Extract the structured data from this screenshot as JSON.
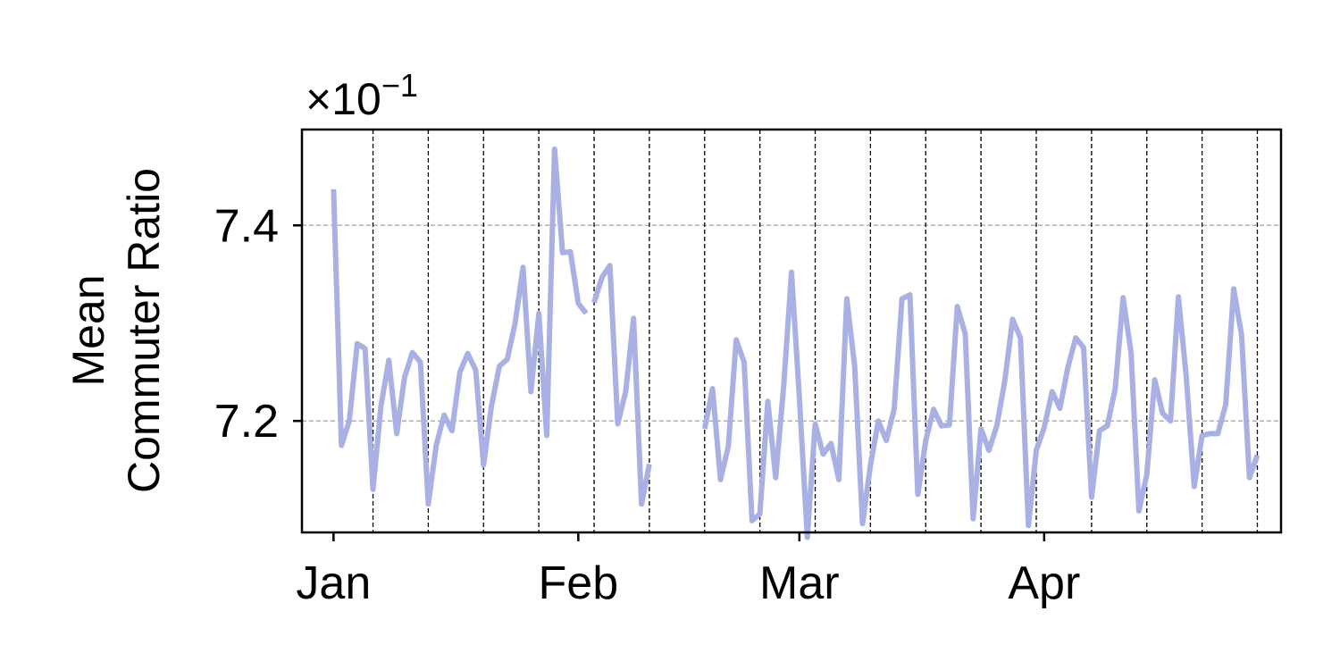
{
  "chart_data": {
    "type": "line",
    "title": "",
    "xlabel": "",
    "ylabel_line1": "Mean",
    "ylabel_line2": "Commuter Ratio",
    "y_multiplier": "×10",
    "y_multiplier_exponent": "−1",
    "ylim": [
      7.086,
      7.498
    ],
    "xlim": [
      "2021-12-28",
      "2022-05-01"
    ],
    "yticks": [
      {
        "value": 7.2,
        "label": "7.2"
      },
      {
        "value": 7.4,
        "label": "7.4"
      }
    ],
    "xticks": [
      {
        "date": "2022-01-01",
        "label": "Jan"
      },
      {
        "date": "2022-02-01",
        "label": "Feb"
      },
      {
        "date": "2022-03-01",
        "label": "Mar"
      },
      {
        "date": "2022-04-01",
        "label": "Apr"
      }
    ],
    "y_grid": true,
    "week_lines": [
      "2022-01-06",
      "2022-01-13",
      "2022-01-20",
      "2022-01-27",
      "2022-02-03",
      "2022-02-10",
      "2022-02-17",
      "2022-02-24",
      "2022-03-03",
      "2022-03-10",
      "2022-03-17",
      "2022-03-24",
      "2022-03-31",
      "2022-04-07",
      "2022-04-14",
      "2022-04-21",
      "2022-04-28"
    ],
    "line_color": "#a8b0e4",
    "series": [
      {
        "segments": [
          [
            [
              "2022-01-01",
              7.437
            ],
            [
              "2022-01-02",
              7.175
            ],
            [
              "2022-01-03",
              7.2
            ],
            [
              "2022-01-04",
              7.279
            ],
            [
              "2022-01-05",
              7.274
            ],
            [
              "2022-01-06",
              7.13
            ],
            [
              "2022-01-07",
              7.215
            ],
            [
              "2022-01-08",
              7.262
            ],
            [
              "2022-01-09",
              7.187
            ],
            [
              "2022-01-10",
              7.245
            ],
            [
              "2022-01-11",
              7.27
            ],
            [
              "2022-01-12",
              7.26
            ],
            [
              "2022-01-13",
              7.115
            ],
            [
              "2022-01-14",
              7.175
            ],
            [
              "2022-01-15",
              7.206
            ],
            [
              "2022-01-16",
              7.19
            ],
            [
              "2022-01-17",
              7.25
            ],
            [
              "2022-01-18",
              7.269
            ],
            [
              "2022-01-19",
              7.252
            ],
            [
              "2022-01-20",
              7.155
            ],
            [
              "2022-01-21",
              7.215
            ],
            [
              "2022-01-22",
              7.256
            ],
            [
              "2022-01-23",
              7.263
            ],
            [
              "2022-01-24",
              7.3
            ],
            [
              "2022-01-25",
              7.357
            ],
            [
              "2022-01-26",
              7.23
            ],
            [
              "2022-01-27",
              7.31
            ],
            [
              "2022-01-28",
              7.185
            ],
            [
              "2022-01-29",
              7.478
            ],
            [
              "2022-01-30",
              7.372
            ],
            [
              "2022-01-31",
              7.373
            ],
            [
              "2022-02-01",
              7.32
            ],
            [
              "2022-02-02",
              7.31
            ]
          ],
          [
            [
              "2022-02-03",
              7.321
            ],
            [
              "2022-02-04",
              7.347
            ],
            [
              "2022-02-05",
              7.359
            ],
            [
              "2022-02-06",
              7.197
            ],
            [
              "2022-02-07",
              7.23
            ],
            [
              "2022-02-08",
              7.305
            ],
            [
              "2022-02-09",
              7.115
            ],
            [
              "2022-02-10",
              7.156
            ]
          ],
          [
            [
              "2022-02-17",
              7.192
            ],
            [
              "2022-02-18",
              7.233
            ],
            [
              "2022-02-19",
              7.14
            ],
            [
              "2022-02-20",
              7.174
            ],
            [
              "2022-02-21",
              7.283
            ],
            [
              "2022-02-22",
              7.26
            ],
            [
              "2022-02-23",
              7.098
            ],
            [
              "2022-02-24",
              7.105
            ],
            [
              "2022-02-25",
              7.22
            ],
            [
              "2022-02-26",
              7.142
            ],
            [
              "2022-02-27",
              7.235
            ],
            [
              "2022-02-28",
              7.352
            ],
            [
              "2022-03-01",
              7.224
            ],
            [
              "2022-03-02",
              7.081
            ],
            [
              "2022-03-03",
              7.197
            ],
            [
              "2022-03-04",
              7.166
            ],
            [
              "2022-03-05",
              7.177
            ],
            [
              "2022-03-06",
              7.14
            ],
            [
              "2022-03-07",
              7.325
            ],
            [
              "2022-03-08",
              7.256
            ],
            [
              "2022-03-09",
              7.095
            ],
            [
              "2022-03-10",
              7.155
            ],
            [
              "2022-03-11",
              7.2
            ],
            [
              "2022-03-12",
              7.18
            ],
            [
              "2022-03-13",
              7.212
            ],
            [
              "2022-03-14",
              7.325
            ],
            [
              "2022-03-15",
              7.329
            ],
            [
              "2022-03-16",
              7.125
            ],
            [
              "2022-03-17",
              7.18
            ],
            [
              "2022-03-18",
              7.212
            ],
            [
              "2022-03-19",
              7.195
            ],
            [
              "2022-03-20",
              7.196
            ],
            [
              "2022-03-21",
              7.317
            ],
            [
              "2022-03-22",
              7.289
            ],
            [
              "2022-03-23",
              7.1
            ],
            [
              "2022-03-24",
              7.192
            ],
            [
              "2022-03-25",
              7.17
            ],
            [
              "2022-03-26",
              7.195
            ],
            [
              "2022-03-27",
              7.24
            ],
            [
              "2022-03-28",
              7.304
            ],
            [
              "2022-03-29",
              7.285
            ],
            [
              "2022-03-30",
              7.093
            ],
            [
              "2022-03-31",
              7.17
            ],
            [
              "2022-04-01",
              7.193
            ],
            [
              "2022-04-02",
              7.23
            ],
            [
              "2022-04-03",
              7.213
            ],
            [
              "2022-04-04",
              7.255
            ],
            [
              "2022-04-05",
              7.285
            ],
            [
              "2022-04-06",
              7.275
            ],
            [
              "2022-04-07",
              7.122
            ],
            [
              "2022-04-08",
              7.19
            ],
            [
              "2022-04-09",
              7.195
            ],
            [
              "2022-04-10",
              7.233
            ],
            [
              "2022-04-11",
              7.326
            ],
            [
              "2022-04-12",
              7.27
            ],
            [
              "2022-04-13",
              7.108
            ],
            [
              "2022-04-14",
              7.145
            ],
            [
              "2022-04-15",
              7.242
            ],
            [
              "2022-04-16",
              7.208
            ],
            [
              "2022-04-17",
              7.2
            ],
            [
              "2022-04-18",
              7.327
            ],
            [
              "2022-04-19",
              7.245
            ],
            [
              "2022-04-20",
              7.133
            ],
            [
              "2022-04-21",
              7.185
            ],
            [
              "2022-04-22",
              7.187
            ],
            [
              "2022-04-23",
              7.187
            ],
            [
              "2022-04-24",
              7.217
            ],
            [
              "2022-04-25",
              7.335
            ],
            [
              "2022-04-26",
              7.288
            ],
            [
              "2022-04-27",
              7.142
            ],
            [
              "2022-04-28",
              7.165
            ]
          ]
        ]
      }
    ]
  }
}
